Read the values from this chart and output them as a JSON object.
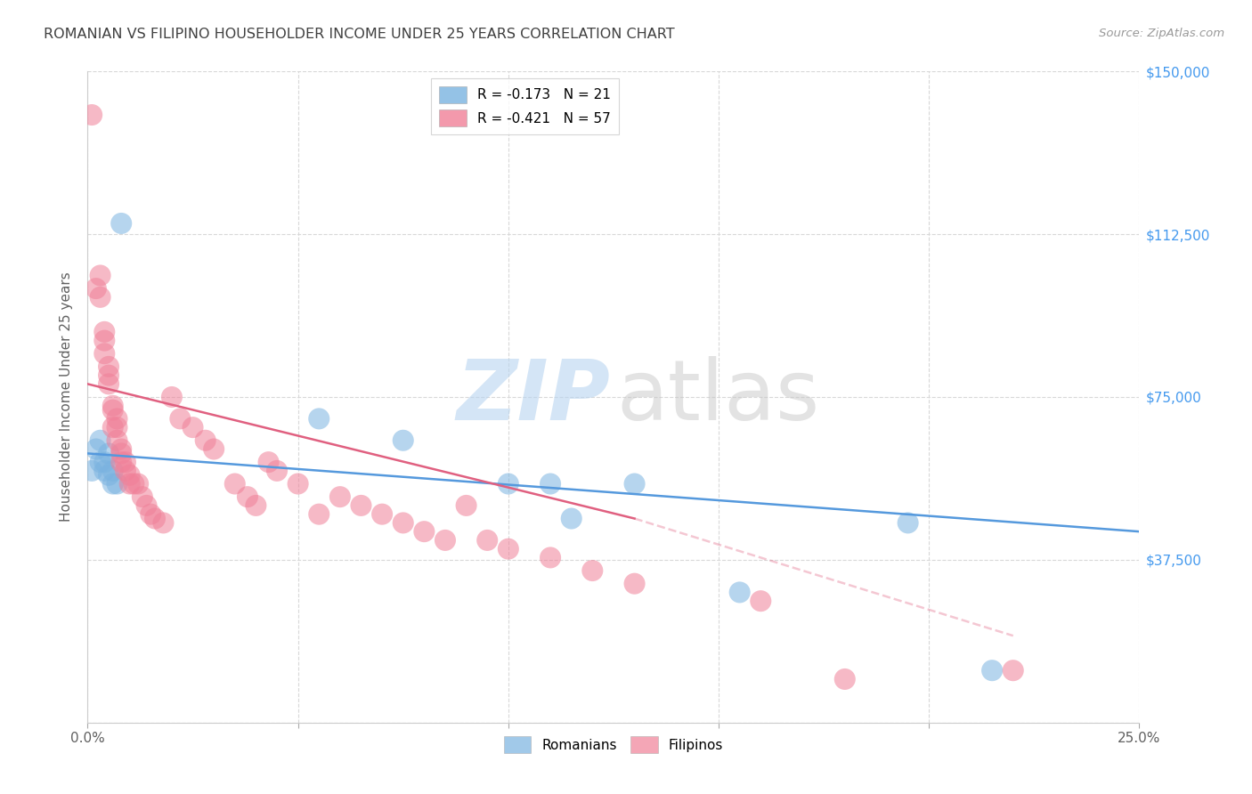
{
  "title": "ROMANIAN VS FILIPINO HOUSEHOLDER INCOME UNDER 25 YEARS CORRELATION CHART",
  "source": "Source: ZipAtlas.com",
  "ylabel": "Householder Income Under 25 years",
  "xlim": [
    0.0,
    0.25
  ],
  "ylim": [
    0,
    150000
  ],
  "yticks": [
    0,
    37500,
    75000,
    112500,
    150000
  ],
  "ytick_labels": [
    "",
    "$37,500",
    "$75,000",
    "$112,500",
    "$150,000"
  ],
  "xticks": [
    0.0,
    0.05,
    0.1,
    0.15,
    0.2,
    0.25
  ],
  "xtick_labels": [
    "0.0%",
    "",
    "",
    "",
    "",
    "25.0%"
  ],
  "legend_entries": [
    {
      "label": "R = -0.173   N = 21",
      "color": "#a8c8f0"
    },
    {
      "label": "R = -0.421   N = 57",
      "color": "#f0a8b8"
    }
  ],
  "romanians": {
    "color": "#7ab3e0",
    "x": [
      0.001,
      0.002,
      0.003,
      0.003,
      0.004,
      0.004,
      0.005,
      0.005,
      0.006,
      0.006,
      0.007,
      0.008,
      0.055,
      0.075,
      0.1,
      0.11,
      0.115,
      0.13,
      0.155,
      0.195,
      0.215
    ],
    "y": [
      58000,
      63000,
      60000,
      65000,
      58000,
      60000,
      62000,
      57000,
      55000,
      58000,
      55000,
      115000,
      70000,
      65000,
      55000,
      55000,
      47000,
      55000,
      30000,
      46000,
      12000
    ]
  },
  "filipinos": {
    "color": "#f08098",
    "x": [
      0.001,
      0.002,
      0.003,
      0.003,
      0.004,
      0.004,
      0.004,
      0.005,
      0.005,
      0.005,
      0.006,
      0.006,
      0.006,
      0.007,
      0.007,
      0.007,
      0.008,
      0.008,
      0.008,
      0.009,
      0.009,
      0.01,
      0.01,
      0.011,
      0.012,
      0.013,
      0.014,
      0.015,
      0.016,
      0.018,
      0.02,
      0.022,
      0.025,
      0.028,
      0.03,
      0.035,
      0.038,
      0.04,
      0.043,
      0.045,
      0.05,
      0.055,
      0.06,
      0.065,
      0.07,
      0.075,
      0.08,
      0.085,
      0.09,
      0.095,
      0.1,
      0.11,
      0.12,
      0.13,
      0.16,
      0.18,
      0.22
    ],
    "y": [
      140000,
      100000,
      103000,
      98000,
      90000,
      88000,
      85000,
      82000,
      80000,
      78000,
      73000,
      72000,
      68000,
      70000,
      68000,
      65000,
      63000,
      62000,
      60000,
      60000,
      58000,
      57000,
      55000,
      55000,
      55000,
      52000,
      50000,
      48000,
      47000,
      46000,
      75000,
      70000,
      68000,
      65000,
      63000,
      55000,
      52000,
      50000,
      60000,
      58000,
      55000,
      48000,
      52000,
      50000,
      48000,
      46000,
      44000,
      42000,
      50000,
      42000,
      40000,
      38000,
      35000,
      32000,
      28000,
      10000,
      12000
    ]
  },
  "background_color": "#ffffff",
  "grid_color": "#d8d8d8",
  "title_color": "#404040",
  "axis_color": "#606060",
  "blue_line_color": "#5599dd",
  "pink_line_color": "#e06080",
  "watermark_color_zip": "#b8d4f0",
  "watermark_color_atlas": "#c8c8c8"
}
